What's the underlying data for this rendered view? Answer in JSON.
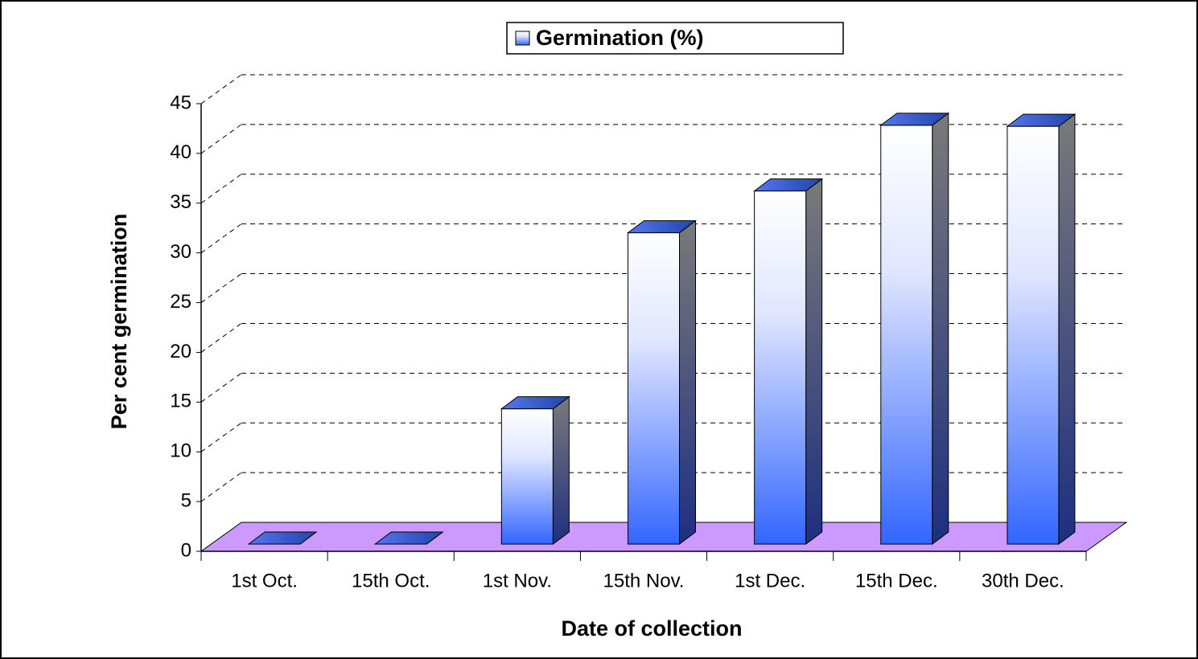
{
  "chart_data": {
    "type": "bar3d",
    "x_label": "Date of collection",
    "y_label": "Per cent germination",
    "categories": [
      "1st Oct.",
      "15th Oct.",
      "1st Nov.",
      "15th Nov.",
      "1st Dec.",
      "15th Dec.",
      "30th Dec."
    ],
    "series": [
      {
        "name": "Germination (%)",
        "color": "#3366ff",
        "values": [
          0,
          0,
          13.6,
          31.3,
          35.5,
          42.1,
          42.0
        ]
      }
    ],
    "ylim": [
      0,
      45
    ],
    "yticks": [
      0,
      5,
      10,
      15,
      20,
      25,
      30,
      35,
      40,
      45
    ],
    "grid": true,
    "legend": "top"
  }
}
